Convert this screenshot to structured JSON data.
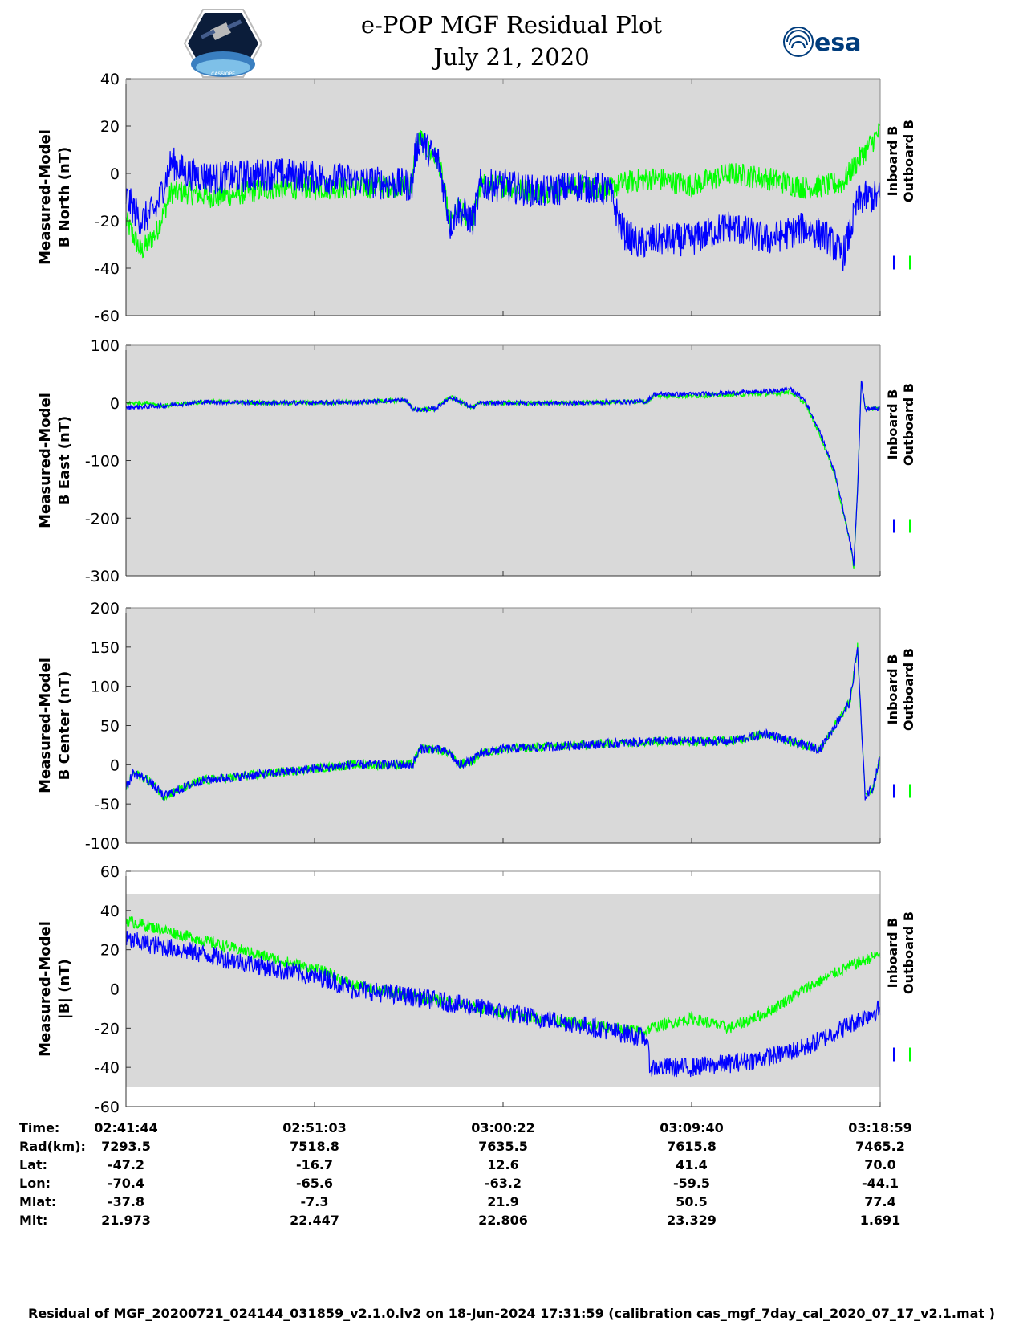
{
  "header": {
    "title_line1": "e-POP MGF Residual Plot",
    "title_line2": "July 21, 2020",
    "left_logo": "cassiope-mission-logo",
    "left_logo_text": "CASSIOPE",
    "right_logo": "esa-logo",
    "right_logo_text": "esa"
  },
  "colors": {
    "inboard": "#0000ff",
    "outboard": "#00ff00",
    "plot_background": "#d9d9d9"
  },
  "chart_data": [
    {
      "type": "line",
      "title": "",
      "ylabel": "Measured-Model B North (nT)",
      "ylabel_lines": [
        "Measured-Model",
        "B North (nT)"
      ],
      "ylim": [
        -60,
        40
      ],
      "yticks": [
        -60,
        -40,
        -20,
        0,
        20,
        40
      ],
      "xticks": [
        "02:41:44",
        "02:51:03",
        "03:00:22",
        "03:09:40",
        "03:18:59"
      ],
      "legend_placement": "right",
      "series": [
        {
          "name": "Inboard B",
          "color": "#0000ff",
          "x": [
            0,
            0.02,
            0.04,
            0.06,
            0.08,
            0.12,
            0.2,
            0.3,
            0.38,
            0.383,
            0.39,
            0.4,
            0.415,
            0.43,
            0.44,
            0.46,
            0.47,
            0.5,
            0.55,
            0.6,
            0.64,
            0.66,
            0.68,
            0.7,
            0.75,
            0.8,
            0.85,
            0.9,
            0.93,
            0.95,
            0.96,
            0.97,
            0.98,
            1.0
          ],
          "values": [
            -10,
            -20,
            -15,
            5,
            0,
            -2,
            0,
            -3,
            -5,
            8,
            15,
            10,
            5,
            -22,
            -15,
            -20,
            -5,
            -5,
            -8,
            -5,
            -7,
            -25,
            -30,
            -28,
            -28,
            -22,
            -28,
            -23,
            -27,
            -35,
            -25,
            -12,
            -10,
            -10
          ],
          "noise": 7
        },
        {
          "name": "Outboard B",
          "color": "#00ff00",
          "x": [
            0,
            0.02,
            0.04,
            0.06,
            0.08,
            0.12,
            0.2,
            0.3,
            0.38,
            0.383,
            0.39,
            0.4,
            0.415,
            0.43,
            0.44,
            0.46,
            0.47,
            0.5,
            0.55,
            0.6,
            0.64,
            0.66,
            0.7,
            0.75,
            0.8,
            0.85,
            0.9,
            0.93,
            0.95,
            0.97,
            1.0
          ],
          "values": [
            -20,
            -33,
            -25,
            -8,
            -8,
            -10,
            -6,
            -6,
            -5,
            8,
            15,
            10,
            5,
            -22,
            -15,
            -20,
            -5,
            -5,
            -8,
            -5,
            -7,
            -4,
            -2,
            -5,
            0,
            -2,
            -6,
            -5,
            -4,
            5,
            18
          ],
          "noise": 5
        }
      ]
    },
    {
      "type": "line",
      "title": "",
      "ylabel": "Measured-Model B East (nT)",
      "ylabel_lines": [
        "Measured-Model",
        "B East (nT)"
      ],
      "ylim": [
        -300,
        100
      ],
      "yticks": [
        -300,
        -200,
        -100,
        0,
        100
      ],
      "xticks": [
        "02:41:44",
        "02:51:03",
        "03:00:22",
        "03:09:40",
        "03:18:59"
      ],
      "legend_placement": "right",
      "series": [
        {
          "name": "Inboard B",
          "color": "#0000ff",
          "x": [
            0,
            0.05,
            0.1,
            0.2,
            0.3,
            0.37,
            0.38,
            0.39,
            0.41,
            0.43,
            0.46,
            0.47,
            0.5,
            0.6,
            0.65,
            0.69,
            0.7,
            0.75,
            0.8,
            0.86,
            0.88,
            0.9,
            0.92,
            0.94,
            0.95,
            0.96,
            0.965,
            0.97,
            0.975,
            0.98,
            0.99,
            1.0
          ],
          "values": [
            -8,
            -5,
            2,
            0,
            1,
            5,
            -10,
            -12,
            -10,
            10,
            -8,
            0,
            0,
            0,
            2,
            2,
            15,
            15,
            17,
            20,
            25,
            5,
            -50,
            -120,
            -180,
            -240,
            -280,
            -150,
            40,
            -10,
            -10,
            -10
          ],
          "noise": 4
        },
        {
          "name": "Outboard B",
          "color": "#00ff00",
          "x": [
            0,
            0.03,
            0.05,
            0.1,
            0.2,
            0.3,
            0.37,
            0.38,
            0.39,
            0.41,
            0.43,
            0.46,
            0.47,
            0.5,
            0.6,
            0.65,
            0.69,
            0.7,
            0.75,
            0.8,
            0.86,
            0.88,
            0.9,
            0.92,
            0.94,
            0.95,
            0.96,
            0.965,
            0.97,
            0.975,
            0.98,
            0.99,
            1.0
          ],
          "values": [
            0,
            0,
            -5,
            2,
            0,
            1,
            5,
            -10,
            -12,
            -10,
            10,
            -8,
            0,
            0,
            0,
            2,
            2,
            12,
            12,
            14,
            16,
            20,
            0,
            -55,
            -125,
            -185,
            -240,
            -285,
            -150,
            40,
            -10,
            -10,
            -10
          ],
          "noise": 4
        }
      ]
    },
    {
      "type": "line",
      "title": "",
      "ylabel": "Measured-Model B Center (nT)",
      "ylabel_lines": [
        "Measured-Model",
        "B Center (nT)"
      ],
      "ylim": [
        -100,
        200
      ],
      "yticks": [
        -100,
        -50,
        0,
        50,
        100,
        150,
        200
      ],
      "xticks": [
        "02:41:44",
        "02:51:03",
        "03:00:22",
        "03:09:40",
        "03:18:59"
      ],
      "legend_placement": "right",
      "series": [
        {
          "name": "Inboard B",
          "color": "#0000ff",
          "x": [
            0,
            0.01,
            0.03,
            0.05,
            0.1,
            0.2,
            0.3,
            0.38,
            0.39,
            0.41,
            0.43,
            0.44,
            0.46,
            0.47,
            0.5,
            0.6,
            0.7,
            0.8,
            0.85,
            0.88,
            0.92,
            0.94,
            0.96,
            0.97,
            0.975,
            0.98,
            0.99,
            1.0
          ],
          "values": [
            -30,
            -10,
            -20,
            -40,
            -20,
            -10,
            0,
            0,
            20,
            20,
            15,
            0,
            5,
            15,
            20,
            25,
            30,
            30,
            40,
            30,
            20,
            50,
            80,
            150,
            50,
            -40,
            -30,
            10
          ],
          "noise": 6
        },
        {
          "name": "Outboard B",
          "color": "#00ff00",
          "x": [
            0,
            0.01,
            0.03,
            0.05,
            0.1,
            0.2,
            0.3,
            0.38,
            0.39,
            0.41,
            0.43,
            0.44,
            0.46,
            0.47,
            0.5,
            0.6,
            0.7,
            0.8,
            0.85,
            0.88,
            0.92,
            0.94,
            0.96,
            0.97,
            0.975,
            0.98,
            0.99,
            1.0
          ],
          "values": [
            -30,
            -10,
            -20,
            -40,
            -20,
            -10,
            0,
            0,
            20,
            20,
            15,
            0,
            5,
            15,
            20,
            25,
            30,
            30,
            40,
            30,
            20,
            50,
            80,
            150,
            50,
            -40,
            -30,
            10
          ],
          "noise": 6
        }
      ]
    },
    {
      "type": "line",
      "title": "",
      "ylabel": "Measured-Model |B| (nT)",
      "ylabel_lines": [
        "Measured-Model",
        "|B| (nT)"
      ],
      "ylim": [
        -60,
        60
      ],
      "yticks": [
        -60,
        -40,
        -20,
        0,
        20,
        40,
        60
      ],
      "xticks": [
        "02:41:44",
        "02:51:03",
        "03:00:22",
        "03:09:40",
        "03:18:59"
      ],
      "legend_placement": "right",
      "series": [
        {
          "name": "Inboard B",
          "color": "#0000ff",
          "x": [
            0,
            0.1,
            0.2,
            0.27,
            0.3,
            0.4,
            0.5,
            0.6,
            0.65,
            0.69,
            0.695,
            0.75,
            0.8,
            0.85,
            0.9,
            0.95,
            1.0
          ],
          "values": [
            25,
            18,
            10,
            5,
            0,
            -5,
            -12,
            -18,
            -22,
            -25,
            -40,
            -40,
            -38,
            -35,
            -30,
            -20,
            -10
          ],
          "noise": 5
        },
        {
          "name": "Outboard B",
          "color": "#00ff00",
          "x": [
            0,
            0.1,
            0.2,
            0.27,
            0.3,
            0.4,
            0.5,
            0.6,
            0.65,
            0.69,
            0.695,
            0.75,
            0.8,
            0.85,
            0.9,
            0.95,
            1.0
          ],
          "values": [
            35,
            25,
            15,
            8,
            2,
            -5,
            -12,
            -18,
            -20,
            -22,
            -20,
            -15,
            -20,
            -12,
            0,
            10,
            18
          ],
          "noise": 3
        }
      ]
    }
  ],
  "ephemeris": {
    "rows": [
      {
        "label": "Time:",
        "values": [
          "02:41:44",
          "02:51:03",
          "03:00:22",
          "03:09:40",
          "03:18:59"
        ]
      },
      {
        "label": "Rad(km):",
        "values": [
          "7293.5",
          "7518.8",
          "7635.5",
          "7615.8",
          "7465.2"
        ]
      },
      {
        "label": "Lat:",
        "values": [
          "-47.2",
          "-16.7",
          "12.6",
          "41.4",
          "70.0"
        ]
      },
      {
        "label": "Lon:",
        "values": [
          "-70.4",
          "-65.6",
          "-63.2",
          "-59.5",
          "-44.1"
        ]
      },
      {
        "label": "Mlat:",
        "values": [
          "-37.8",
          "-7.3",
          "21.9",
          "50.5",
          "77.4"
        ]
      },
      {
        "label": "Mlt:",
        "values": [
          "21.973",
          "22.447",
          "22.806",
          "23.329",
          "1.691"
        ]
      }
    ]
  },
  "footer": "Residual of MGF_20200721_024144_031859_v2.1.0.lv2 on 18-Jun-2024 17:31:59 (calibration cas_mgf_7day_cal_2020_07_17_v2.1.mat )"
}
